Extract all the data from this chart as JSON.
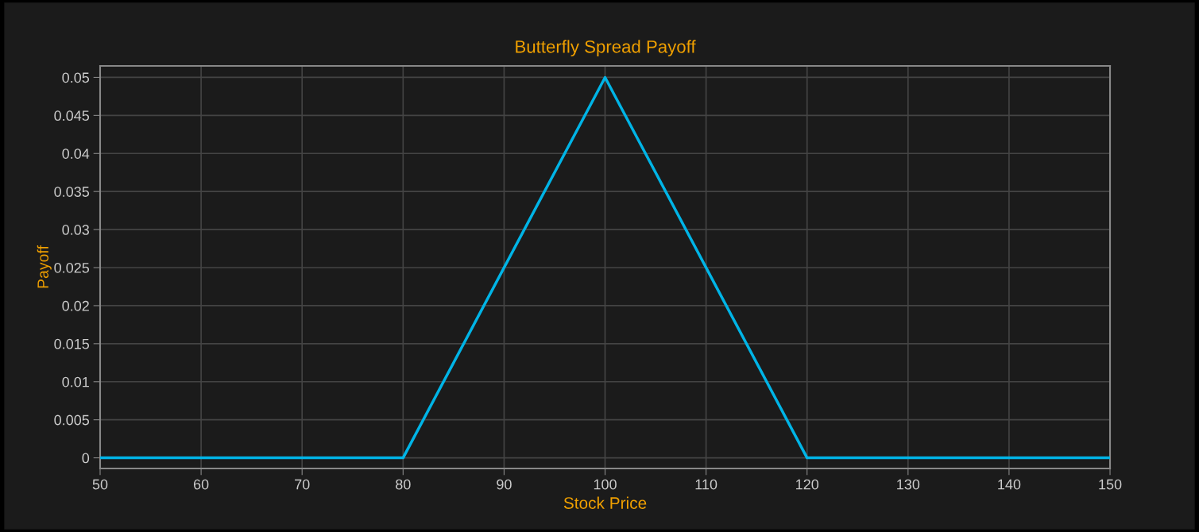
{
  "chart_data": {
    "type": "line",
    "title": "Butterfly Spread Payoff",
    "xlabel": "Stock Price",
    "ylabel": "Payoff",
    "x": [
      50,
      80,
      100,
      120,
      150
    ],
    "series": [
      {
        "color": "#00b4e6",
        "values": [
          0,
          0,
          0.05,
          0,
          0
        ]
      }
    ],
    "xlim": [
      50,
      150
    ],
    "xticks": [
      50,
      60,
      70,
      80,
      90,
      100,
      110,
      120,
      130,
      140,
      150
    ],
    "ylim": [
      -0.0014,
      0.0515
    ],
    "yticks": [
      0,
      0.005,
      0.01,
      0.015,
      0.02,
      0.025,
      0.03,
      0.035,
      0.04,
      0.045,
      0.05
    ],
    "grid": true,
    "marker": "none",
    "line_style": "solid"
  }
}
